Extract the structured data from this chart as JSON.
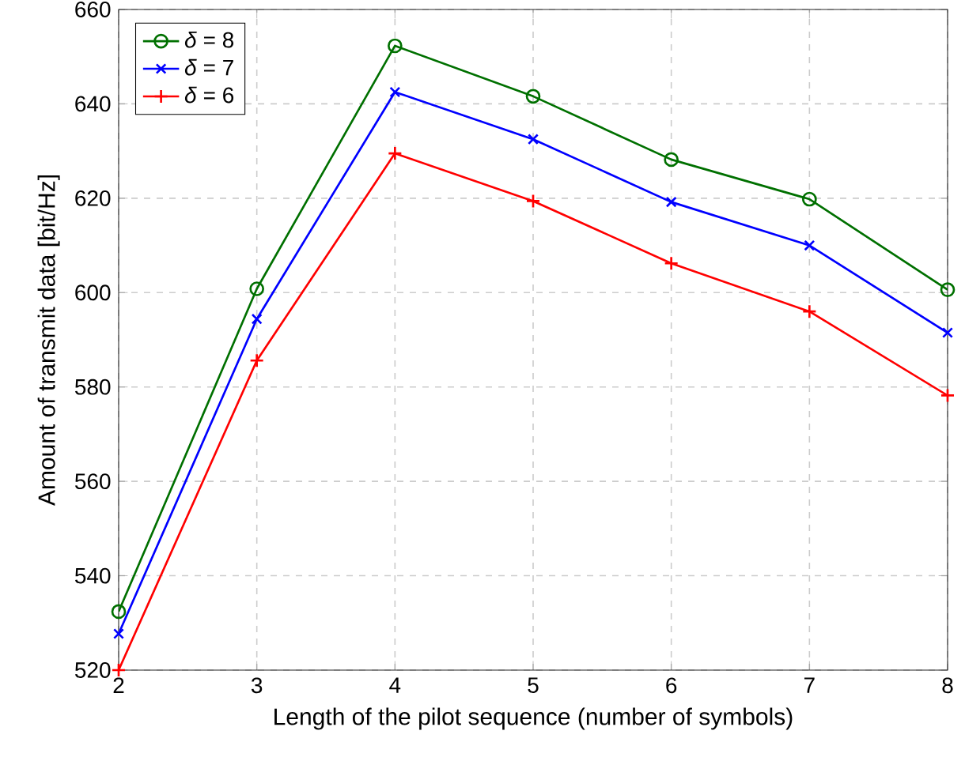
{
  "chart_data": {
    "type": "line",
    "xlabel": "Length of the pilot sequence (number of symbols)",
    "ylabel": "Amount of transmit data [bit/Hz]",
    "x": [
      2,
      3,
      4,
      5,
      6,
      7,
      8
    ],
    "series": [
      {
        "name": "*δ* = 8",
        "color": "#007000",
        "marker": "circle",
        "values": [
          532.4,
          600.8,
          652.3,
          641.6,
          628.2,
          619.8,
          600.6
        ]
      },
      {
        "name": "*δ* = 7",
        "color": "#0000ff",
        "marker": "cross",
        "values": [
          527.7,
          594.4,
          642.5,
          632.5,
          619.2,
          610.0,
          591.5
        ]
      },
      {
        "name": "*δ* = 6",
        "color": "#ff0000",
        "marker": "plus",
        "values": [
          520.0,
          585.6,
          629.5,
          619.4,
          606.2,
          596.0,
          578.2
        ]
      }
    ],
    "xlim": [
      2,
      8
    ],
    "xticks": [
      2,
      3,
      4,
      5,
      6,
      7,
      8
    ],
    "ylim": [
      520,
      660
    ],
    "yticks": [
      520,
      540,
      560,
      580,
      600,
      620,
      640,
      660
    ],
    "grid": true,
    "legend": "top left",
    "line_style": "solid"
  }
}
